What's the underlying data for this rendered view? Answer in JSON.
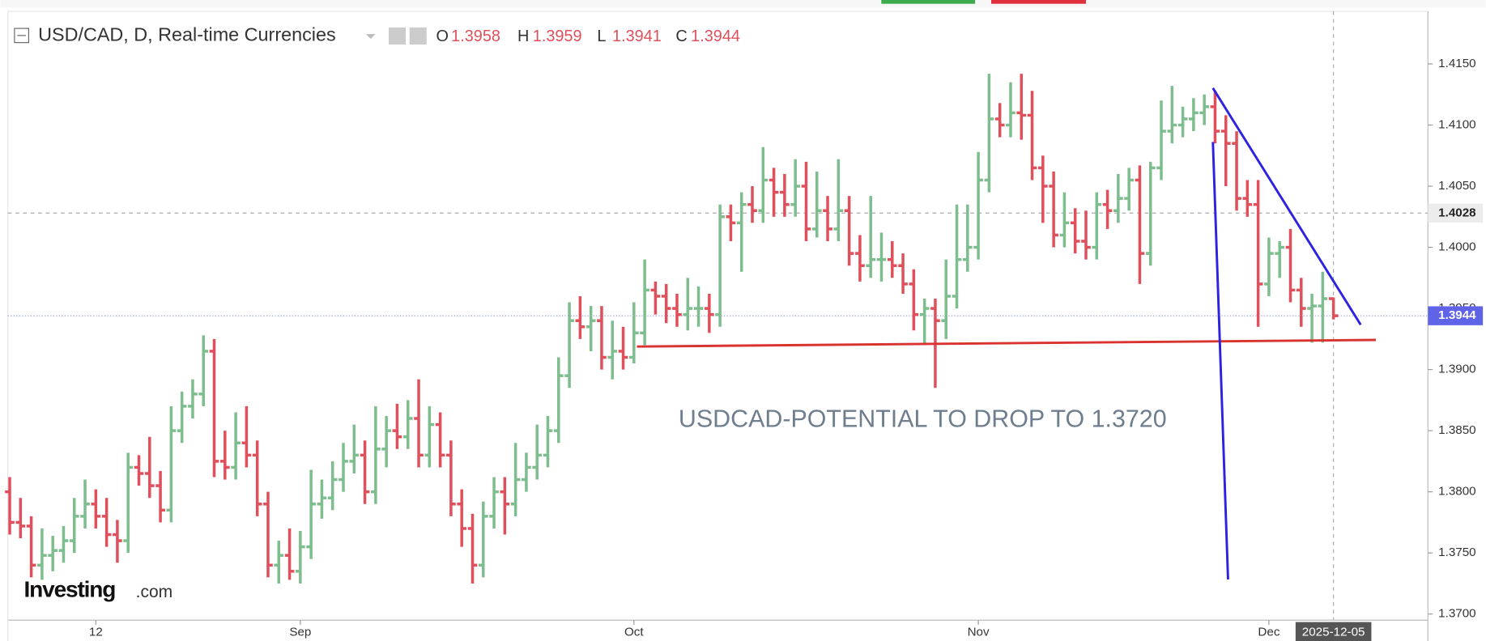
{
  "chart_data": {
    "type": "ohlc",
    "title": "USD/CAD, D, Real-time Currencies",
    "ohlc_labels": [
      "O",
      "H",
      "L",
      "C"
    ],
    "annotation": "USDCAD-POTENTIAL TO DROP TO 1.3720",
    "logo": {
      "main": "Investing",
      "suffix": ".com"
    },
    "up_color": "#7dbd8e",
    "down_color": "#e0505c",
    "ylim": [
      1.3695,
      1.4193
    ],
    "yticks": [
      {
        "value": 1.415,
        "label": "1.4150"
      },
      {
        "value": 1.41,
        "label": "1.4100"
      },
      {
        "value": 1.405,
        "label": "1.4050"
      },
      {
        "value": 1.4,
        "label": "1.4000"
      },
      {
        "value": 1.395,
        "label": "1.3950"
      },
      {
        "value": 1.39,
        "label": "1.3900"
      },
      {
        "value": 1.385,
        "label": "1.3850"
      },
      {
        "value": 1.38,
        "label": "1.3800"
      },
      {
        "value": 1.375,
        "label": "1.3750"
      },
      {
        "value": 1.37,
        "label": "1.3700"
      }
    ],
    "grid": false,
    "xlabels": [
      {
        "index": 8,
        "label": "12"
      },
      {
        "index": 27,
        "label": "Sep"
      },
      {
        "index": 58,
        "label": "Oct"
      },
      {
        "index": 90,
        "label": "Nov"
      },
      {
        "index": 117,
        "label": "Dec"
      }
    ],
    "crosshair": {
      "price": 1.4028,
      "date": "2025-12-05"
    },
    "bars": [
      [
        1.38,
        1.3812,
        1.3765,
        1.3775
      ],
      [
        1.3775,
        1.3795,
        1.3762,
        1.3772
      ],
      [
        1.3772,
        1.378,
        1.373,
        1.374
      ],
      [
        1.374,
        1.377,
        1.3728,
        1.3748
      ],
      [
        1.3748,
        1.3764,
        1.3735,
        1.3752
      ],
      [
        1.3752,
        1.3772,
        1.3742,
        1.376
      ],
      [
        1.376,
        1.3795,
        1.375,
        1.378
      ],
      [
        1.378,
        1.381,
        1.377,
        1.379
      ],
      [
        1.379,
        1.3802,
        1.377,
        1.378
      ],
      [
        1.378,
        1.3795,
        1.3755,
        1.3765
      ],
      [
        1.3765,
        1.3777,
        1.3742,
        1.376
      ],
      [
        1.376,
        1.3832,
        1.375,
        1.382
      ],
      [
        1.382,
        1.383,
        1.3805,
        1.3815
      ],
      [
        1.3815,
        1.3845,
        1.3795,
        1.3805
      ],
      [
        1.3805,
        1.3817,
        1.3775,
        1.3785
      ],
      [
        1.3785,
        1.387,
        1.3775,
        1.385
      ],
      [
        1.385,
        1.3882,
        1.384,
        1.387
      ],
      [
        1.387,
        1.3892,
        1.386,
        1.388
      ],
      [
        1.388,
        1.3928,
        1.387,
        1.3915
      ],
      [
        1.3915,
        1.3925,
        1.3812,
        1.3825
      ],
      [
        1.3825,
        1.385,
        1.381,
        1.382
      ],
      [
        1.382,
        1.3865,
        1.381,
        1.384
      ],
      [
        1.384,
        1.387,
        1.382,
        1.383
      ],
      [
        1.383,
        1.3842,
        1.378,
        1.379
      ],
      [
        1.379,
        1.38,
        1.373,
        1.374
      ],
      [
        1.374,
        1.376,
        1.3725,
        1.3748
      ],
      [
        1.3748,
        1.377,
        1.3728,
        1.3735
      ],
      [
        1.3735,
        1.3768,
        1.3725,
        1.3755
      ],
      [
        1.3755,
        1.3818,
        1.3745,
        1.379
      ],
      [
        1.379,
        1.381,
        1.3778,
        1.3795
      ],
      [
        1.3795,
        1.3825,
        1.3785,
        1.381
      ],
      [
        1.381,
        1.384,
        1.38,
        1.3825
      ],
      [
        1.3825,
        1.3855,
        1.3815,
        1.383
      ],
      [
        1.383,
        1.3842,
        1.379,
        1.38
      ],
      [
        1.38,
        1.387,
        1.379,
        1.3835
      ],
      [
        1.3835,
        1.3862,
        1.382,
        1.385
      ],
      [
        1.385,
        1.3872,
        1.3835,
        1.3845
      ],
      [
        1.3845,
        1.3875,
        1.3835,
        1.386
      ],
      [
        1.386,
        1.3892,
        1.382,
        1.383
      ],
      [
        1.383,
        1.387,
        1.382,
        1.3855
      ],
      [
        1.3855,
        1.3865,
        1.382,
        1.383
      ],
      [
        1.383,
        1.3842,
        1.378,
        1.379
      ],
      [
        1.379,
        1.3802,
        1.3755,
        1.377
      ],
      [
        1.377,
        1.3782,
        1.3725,
        1.374
      ],
      [
        1.374,
        1.3792,
        1.373,
        1.378
      ],
      [
        1.378,
        1.3812,
        1.377,
        1.38
      ],
      [
        1.38,
        1.3812,
        1.3765,
        1.379
      ],
      [
        1.379,
        1.384,
        1.378,
        1.381
      ],
      [
        1.381,
        1.3832,
        1.38,
        1.382
      ],
      [
        1.382,
        1.3855,
        1.381,
        1.383
      ],
      [
        1.383,
        1.3862,
        1.382,
        1.385
      ],
      [
        1.385,
        1.391,
        1.384,
        1.3895
      ],
      [
        1.3895,
        1.3955,
        1.3885,
        1.394
      ],
      [
        1.394,
        1.396,
        1.3925,
        1.3935
      ],
      [
        1.3935,
        1.3952,
        1.3915,
        1.394
      ],
      [
        1.394,
        1.3952,
        1.39,
        1.391
      ],
      [
        1.391,
        1.394,
        1.3892,
        1.3915
      ],
      [
        1.3915,
        1.3935,
        1.39,
        1.391
      ],
      [
        1.391,
        1.3955,
        1.3905,
        1.393
      ],
      [
        1.393,
        1.399,
        1.392,
        1.3965
      ],
      [
        1.3965,
        1.3972,
        1.3945,
        1.396
      ],
      [
        1.396,
        1.397,
        1.3938,
        1.395
      ],
      [
        1.395,
        1.3962,
        1.3935,
        1.3945
      ],
      [
        1.3945,
        1.3975,
        1.3932,
        1.395
      ],
      [
        1.395,
        1.3968,
        1.3935,
        1.395
      ],
      [
        1.395,
        1.3962,
        1.393,
        1.3945
      ],
      [
        1.3945,
        1.4035,
        1.3935,
        1.4025
      ],
      [
        1.4025,
        1.4035,
        1.4005,
        1.402
      ],
      [
        1.402,
        1.4045,
        1.398,
        1.4035
      ],
      [
        1.4035,
        1.405,
        1.402,
        1.403
      ],
      [
        1.403,
        1.4082,
        1.402,
        1.4055
      ],
      [
        1.4055,
        1.4065,
        1.4025,
        1.4045
      ],
      [
        1.4045,
        1.406,
        1.4025,
        1.4035
      ],
      [
        1.4035,
        1.4072,
        1.4025,
        1.405
      ],
      [
        1.405,
        1.407,
        1.4005,
        1.4015
      ],
      [
        1.4015,
        1.4062,
        1.4008,
        1.403
      ],
      [
        1.403,
        1.4042,
        1.4005,
        1.4015
      ],
      [
        1.4015,
        1.4072,
        1.4005,
        1.403
      ],
      [
        1.403,
        1.4042,
        1.3985,
        1.3995
      ],
      [
        1.3995,
        1.401,
        1.3972,
        1.3985
      ],
      [
        1.3985,
        1.4042,
        1.3975,
        1.399
      ],
      [
        1.399,
        1.4012,
        1.3972,
        1.399
      ],
      [
        1.399,
        1.4005,
        1.3975,
        1.3985
      ],
      [
        1.3985,
        1.3995,
        1.3962,
        1.397
      ],
      [
        1.397,
        1.3982,
        1.3932,
        1.3945
      ],
      [
        1.3945,
        1.3958,
        1.392,
        1.395
      ],
      [
        1.395,
        1.3958,
        1.3885,
        1.394
      ],
      [
        1.394,
        1.399,
        1.3925,
        1.396
      ],
      [
        1.396,
        1.4035,
        1.395,
        1.399
      ],
      [
        1.399,
        1.4035,
        1.398,
        1.4
      ],
      [
        1.4,
        1.4078,
        1.399,
        1.4055
      ],
      [
        1.4055,
        1.4142,
        1.4045,
        1.4105
      ],
      [
        1.4105,
        1.4118,
        1.409,
        1.41
      ],
      [
        1.41,
        1.4135,
        1.409,
        1.411
      ],
      [
        1.411,
        1.4142,
        1.4088,
        1.4108
      ],
      [
        1.4108,
        1.4128,
        1.4055,
        1.4065
      ],
      [
        1.4065,
        1.4075,
        1.402,
        1.405
      ],
      [
        1.405,
        1.4062,
        1.4,
        1.401
      ],
      [
        1.401,
        1.4045,
        1.4,
        1.402
      ],
      [
        1.402,
        1.4032,
        1.3995,
        1.4005
      ],
      [
        1.4005,
        1.403,
        1.399,
        1.4
      ],
      [
        1.4,
        1.4045,
        1.399,
        1.4035
      ],
      [
        1.4035,
        1.4047,
        1.4015,
        1.403
      ],
      [
        1.403,
        1.406,
        1.402,
        1.404
      ],
      [
        1.404,
        1.4065,
        1.403,
        1.4055
      ],
      [
        1.4055,
        1.4067,
        1.397,
        1.3995
      ],
      [
        1.3995,
        1.407,
        1.3985,
        1.4065
      ],
      [
        1.4065,
        1.412,
        1.4055,
        1.4095
      ],
      [
        1.4095,
        1.4132,
        1.4085,
        1.41
      ],
      [
        1.41,
        1.4115,
        1.409,
        1.4105
      ],
      [
        1.4105,
        1.4122,
        1.4095,
        1.411
      ],
      [
        1.411,
        1.4125,
        1.41,
        1.4115
      ],
      [
        1.4115,
        1.4128,
        1.4085,
        1.4095
      ],
      [
        1.4095,
        1.4108,
        1.405,
        1.4085
      ],
      [
        1.4085,
        1.4095,
        1.403,
        1.404
      ],
      [
        1.404,
        1.4055,
        1.4025,
        1.4035
      ],
      [
        1.4035,
        1.4055,
        1.3935,
        1.397
      ],
      [
        1.397,
        1.4008,
        1.396,
        1.3995
      ],
      [
        1.3995,
        1.4005,
        1.3975,
        1.4
      ],
      [
        1.4,
        1.4015,
        1.3955,
        1.3965
      ],
      [
        1.3965,
        1.3975,
        1.3935,
        1.395
      ],
      [
        1.395,
        1.3962,
        1.3922,
        1.3952
      ],
      [
        1.3952,
        1.398,
        1.3922,
        1.3958
      ],
      [
        1.3958,
        1.3959,
        1.3941,
        1.3944
      ]
    ]
  }
}
